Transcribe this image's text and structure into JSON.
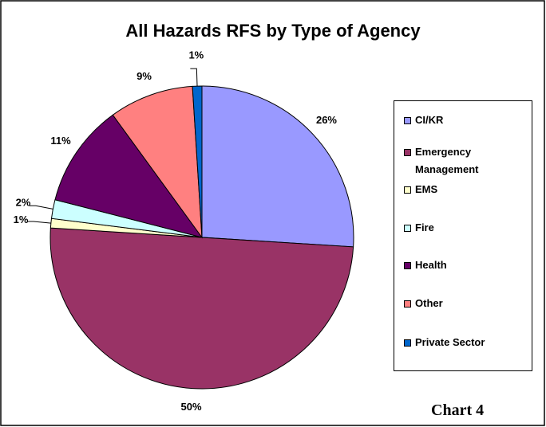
{
  "chart_data": {
    "type": "pie",
    "title": "All Hazards RFS by Type of Agency",
    "categories": [
      "CI/KR",
      "Emergency Management",
      "EMS",
      "Fire",
      "Health",
      "Other",
      "Private Sector"
    ],
    "values": [
      26,
      50,
      1,
      2,
      11,
      9,
      1
    ],
    "value_labels": [
      "26%",
      "50%",
      "1%",
      "2%",
      "11%",
      "9%",
      "1%"
    ],
    "colors": [
      "#9999ff",
      "#993366",
      "#ffffcc",
      "#ccffff",
      "#660066",
      "#ff8080",
      "#0066cc"
    ],
    "legend": "right"
  },
  "caption": "Chart 4"
}
